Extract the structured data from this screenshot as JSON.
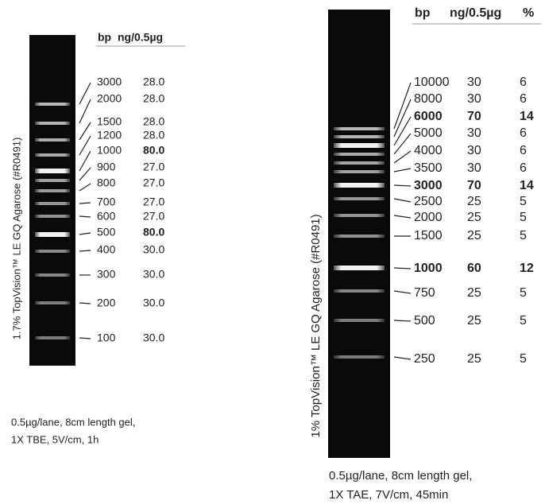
{
  "gels": [
    {
      "header": {
        "bp": "bp",
        "ng": "ng/0.5µg"
      },
      "rows": [
        {
          "bp": "3000",
          "ng": "28.0"
        },
        {
          "bp": "2000",
          "ng": "28.0"
        },
        {
          "bp": "1500",
          "ng": "28.0"
        },
        {
          "bp": "1200",
          "ng": "28.0"
        },
        {
          "bp": "1000",
          "ng": "80.0",
          "ng_bold": true
        },
        {
          "bp": "900",
          "ng": "27.0"
        },
        {
          "bp": "800",
          "ng": "27.0"
        },
        {
          "bp": "700",
          "ng": "27.0"
        },
        {
          "bp": "600",
          "ng": "27.0"
        },
        {
          "bp": "500",
          "ng": "80.0",
          "ng_bold": true
        },
        {
          "bp": "400",
          "ng": "30.0"
        },
        {
          "bp": "300",
          "ng": "30.0"
        },
        {
          "bp": "200",
          "ng": "30.0"
        },
        {
          "bp": "100",
          "ng": "30.0"
        }
      ],
      "side_label": "1.7% TopVision™ LE GQ Agarose (#R0491)",
      "caption": [
        "0.5µg/lane, 8cm length gel,",
        "1X TBE, 5V/cm, 1h"
      ]
    },
    {
      "header": {
        "bp": "bp",
        "ng": "ng/0.5µg",
        "pct": "%"
      },
      "rows": [
        {
          "bp": "10000",
          "ng": "30",
          "pct": "6"
        },
        {
          "bp": "8000",
          "ng": "30",
          "pct": "6"
        },
        {
          "bp": "6000",
          "ng": "70",
          "pct": "14",
          "bold": true
        },
        {
          "bp": "5000",
          "ng": "30",
          "pct": "6"
        },
        {
          "bp": "4000",
          "ng": "30",
          "pct": "6"
        },
        {
          "bp": "3500",
          "ng": "30",
          "pct": "6"
        },
        {
          "bp": "3000",
          "ng": "70",
          "pct": "14",
          "bold": true
        },
        {
          "bp": "2500",
          "ng": "25",
          "pct": "5"
        },
        {
          "bp": "2000",
          "ng": "25",
          "pct": "5"
        },
        {
          "bp": "1500",
          "ng": "25",
          "pct": "5"
        },
        {
          "bp": "1000",
          "ng": "60",
          "pct": "12",
          "bold": true
        },
        {
          "bp": "750",
          "ng": "25",
          "pct": "5"
        },
        {
          "bp": "500",
          "ng": "25",
          "pct": "5"
        },
        {
          "bp": "250",
          "ng": "25",
          "pct": "5"
        }
      ],
      "side_label": "1% TopVision™ LE GQ Agarose (#R0491)",
      "caption": [
        "0.5µg/lane, 8cm length gel,",
        "1X TAE, 7V/cm, 45min"
      ]
    }
  ]
}
